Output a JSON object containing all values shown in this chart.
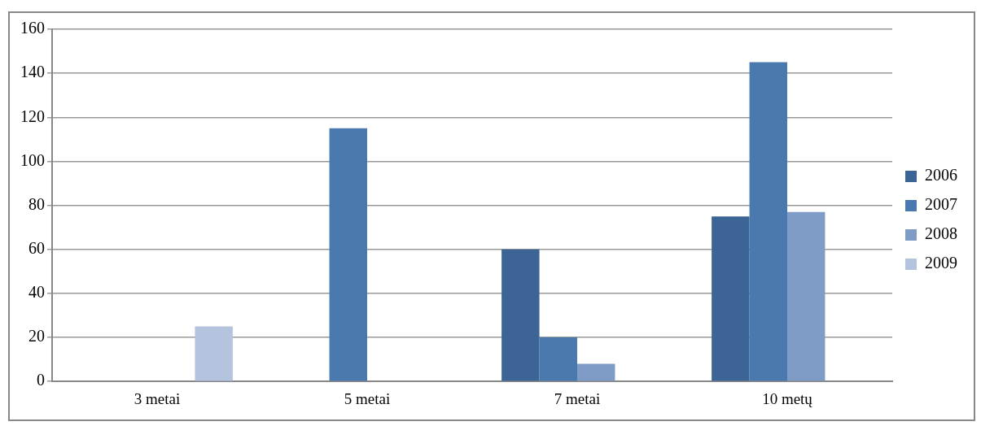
{
  "chart_data": {
    "type": "bar",
    "categories": [
      "3 metai",
      "5 metai",
      "7 metai",
      "10 metų"
    ],
    "series": [
      {
        "name": "2006",
        "color": "#3c6495",
        "values": [
          null,
          null,
          60,
          75
        ]
      },
      {
        "name": "2007",
        "color": "#4a79b0",
        "values": [
          null,
          115,
          20,
          145
        ]
      },
      {
        "name": "2008",
        "color": "#7f9cc7",
        "values": [
          null,
          null,
          8,
          77
        ]
      },
      {
        "name": "2009",
        "color": "#b4c3de",
        "values": [
          25,
          null,
          null,
          null
        ]
      }
    ],
    "ylim": [
      0,
      160
    ],
    "yticks": [
      0,
      20,
      40,
      60,
      80,
      100,
      120,
      140,
      160
    ],
    "grid": "y",
    "legend": "right"
  }
}
